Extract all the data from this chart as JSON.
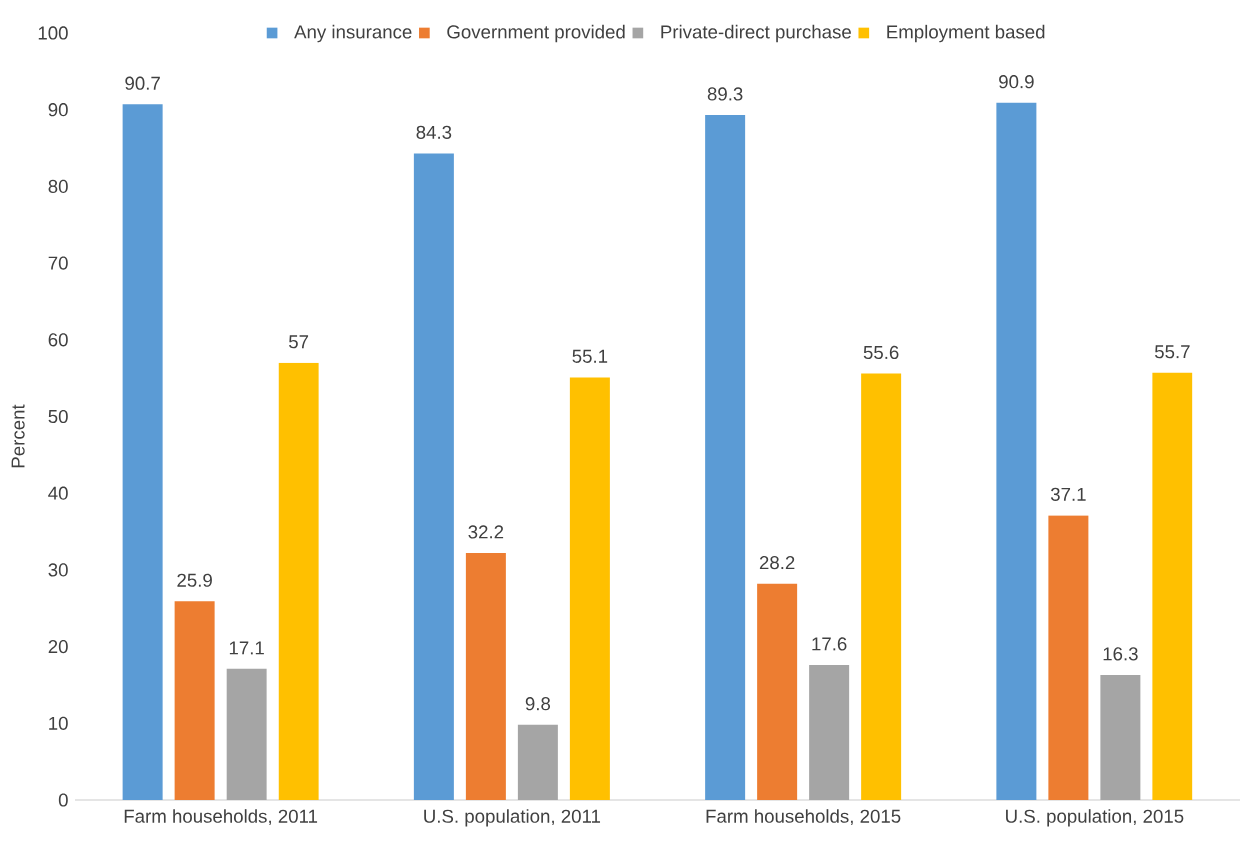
{
  "chart_data": {
    "type": "bar",
    "ylabel": "Percent",
    "categories": [
      "Farm households, 2011",
      "U.S. population, 2011",
      "Farm households, 2015",
      "U.S. population, 2015"
    ],
    "series": [
      {
        "name": "Any insurance",
        "color": "#5b9bd5",
        "values": [
          90.7,
          84.3,
          89.3,
          90.9
        ]
      },
      {
        "name": "Government provided",
        "color": "#ed7d31",
        "values": [
          25.9,
          32.2,
          28.2,
          37.1
        ]
      },
      {
        "name": "Private-direct purchase",
        "color": "#a5a5a5",
        "values": [
          17.1,
          9.8,
          17.6,
          16.3
        ]
      },
      {
        "name": "Employment based",
        "color": "#ffc000",
        "values": [
          57,
          55.1,
          55.6,
          55.7
        ]
      }
    ],
    "ylim": [
      0,
      100
    ],
    "yticks": [
      0,
      10,
      20,
      30,
      40,
      50,
      60,
      70,
      80,
      90,
      100
    ],
    "data_labels": true,
    "legend": "top",
    "grid": false
  }
}
